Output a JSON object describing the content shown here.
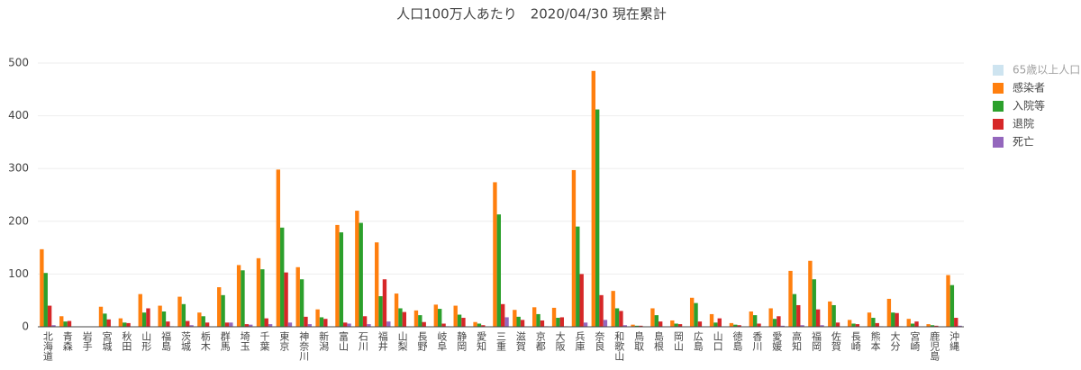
{
  "chart_data": {
    "type": "bar",
    "title": "人口100万人あたり　2020/04/30 現在累計",
    "categories": [
      "北海道",
      "青森",
      "岩手",
      "宮城",
      "秋田",
      "山形",
      "福島",
      "茨城",
      "栃木",
      "群馬",
      "埼玉",
      "千葉",
      "東京",
      "神奈川",
      "新潟",
      "富山",
      "石川",
      "福井",
      "山梨",
      "長野",
      "岐阜",
      "静岡",
      "愛知",
      "三重",
      "滋賀",
      "京都",
      "大阪",
      "兵庫",
      "奈良",
      "和歌山",
      "鳥取",
      "島根",
      "岡山",
      "広島",
      "山口",
      "徳島",
      "香川",
      "愛媛",
      "高知",
      "福岡",
      "佐賀",
      "長崎",
      "熊本",
      "大分",
      "宮崎",
      "鹿児島",
      "沖縄"
    ],
    "hidden_series": {
      "name": "65歳以上人口",
      "color": "#9ecae1"
    },
    "series": [
      {
        "name": "感染者",
        "color": "#ff7f0e",
        "values": [
          147,
          20,
          0,
          38,
          16,
          62,
          40,
          57,
          27,
          75,
          117,
          130,
          298,
          113,
          33,
          193,
          220,
          160,
          63,
          31,
          42,
          40,
          9,
          274,
          32,
          37,
          36,
          297,
          485,
          68,
          4,
          35,
          12,
          55,
          24,
          7,
          29,
          35,
          106,
          125,
          48,
          13,
          27,
          53,
          15,
          5,
          98
        ]
      },
      {
        "name": "入院等",
        "color": "#2ca02c",
        "values": [
          102,
          10,
          0,
          25,
          8,
          27,
          29,
          43,
          20,
          60,
          107,
          109,
          188,
          90,
          18,
          179,
          197,
          58,
          35,
          22,
          34,
          23,
          6,
          213,
          19,
          24,
          17,
          190,
          412,
          35,
          2,
          22,
          6,
          45,
          8,
          4,
          22,
          15,
          62,
          90,
          41,
          6,
          17,
          27,
          6,
          3,
          79
        ]
      },
      {
        "name": "退院",
        "color": "#d62728",
        "values": [
          40,
          11,
          0,
          14,
          7,
          35,
          10,
          11,
          8,
          8,
          5,
          16,
          103,
          19,
          15,
          8,
          20,
          90,
          28,
          9,
          6,
          17,
          3,
          43,
          13,
          12,
          18,
          100,
          60,
          30,
          2,
          10,
          5,
          10,
          16,
          3,
          6,
          20,
          41,
          33,
          8,
          5,
          7,
          26,
          10,
          2,
          17
        ]
      },
      {
        "name": "死亡",
        "color": "#9467bd",
        "values": [
          3,
          0,
          0,
          0,
          0,
          0,
          1,
          3,
          0,
          8,
          4,
          5,
          8,
          5,
          0,
          6,
          5,
          10,
          0,
          0,
          1,
          0,
          0,
          18,
          0,
          1,
          1,
          8,
          13,
          3,
          0,
          0,
          0,
          0,
          0,
          0,
          0,
          2,
          3,
          3,
          0,
          0,
          1,
          1,
          0,
          0,
          2
        ]
      }
    ],
    "ylim": [
      0,
      520
    ],
    "yticks": [
      0,
      100,
      200,
      300,
      400,
      500
    ],
    "grid": true
  }
}
